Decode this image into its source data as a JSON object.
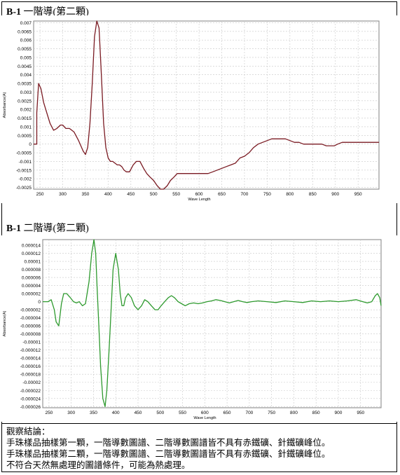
{
  "headers": [
    {
      "code": "B-1",
      "title": "一階導(第二顆)"
    },
    {
      "code": "B-1",
      "title": "二階導(第二顆)"
    }
  ],
  "conclusion": {
    "heading": "觀察結論：",
    "lines": [
      "手珠樣品抽樣第一顆，一階導數圖譜、二階導數圖譜皆不具有赤鐵礦、針鐵礦峰位。",
      "手珠樣品抽樣第二顆，一階導數圖譜、二階導數圖譜皆不具有赤鐵礦、針鐵礦峰位。",
      "不符合天然無處理的圖譜條件，可能為熱處理。"
    ]
  },
  "colors": {
    "chart1_line": "#7a1a22",
    "chart2_line": "#2e9a2e",
    "grid": "#c8c8c8"
  },
  "chart_data": [
    {
      "type": "line",
      "xlabel": "Wave Length",
      "ylabel": "Absorbance(A)",
      "xlim": [
        236,
        996
      ],
      "ylim": [
        -0.0026,
        0.0071
      ],
      "x_ticks": [
        250,
        300,
        350,
        400,
        450,
        500,
        550,
        600,
        650,
        700,
        750,
        800,
        850,
        900,
        950
      ],
      "y_ticks": [
        0.007,
        0.0065,
        0.006,
        0.0055,
        0.005,
        0.0045,
        0.004,
        0.0035,
        0.003,
        0.0025,
        0.002,
        0.0015,
        0.001,
        0.0005,
        0,
        -0.0005,
        -0.001,
        -0.0015,
        -0.002,
        -0.0025
      ],
      "y_tick_labels": [
        "0.007",
        "0.0065",
        "0.006",
        "0.0055",
        "0.005",
        "0.0045",
        "0.004",
        "0.0035",
        "0.003",
        "0.0025",
        "0.002",
        "0.0015",
        "0.001",
        "0.0005",
        "0",
        "-0.0005",
        "-0.001",
        "-0.0015",
        "-0.002",
        "-0.0025"
      ],
      "series": [
        {
          "x": [
            236,
            243,
            243,
            247,
            252,
            258,
            265,
            272,
            280,
            287,
            295,
            300,
            307,
            315,
            325,
            335,
            345,
            350,
            355,
            360,
            365,
            370,
            375,
            380,
            385,
            390,
            395,
            400,
            405,
            410,
            415,
            420,
            425,
            430,
            435,
            440,
            447,
            455,
            462,
            470,
            478,
            485,
            492,
            500,
            508,
            515,
            522,
            530,
            537,
            545,
            552,
            560,
            570,
            580,
            590,
            600,
            610,
            620,
            630,
            640,
            650,
            660,
            670,
            680,
            690,
            700,
            710,
            720,
            730,
            740,
            750,
            760,
            770,
            780,
            790,
            800,
            810,
            820,
            830,
            840,
            850,
            860,
            870,
            880,
            890,
            898,
            905,
            915,
            925,
            935,
            950,
            970,
            996
          ],
          "y": [
            0,
            0,
            0.0018,
            0.0035,
            0.0032,
            0.0024,
            0.0018,
            0.0012,
            0.0008,
            0.0009,
            0.0011,
            0.0011,
            0.0009,
            0.0009,
            0.0007,
            0.0002,
            -0.0004,
            -0.0006,
            -0.0002,
            0.0012,
            0.0035,
            0.0062,
            0.0071,
            0.0067,
            0.004,
            0.0012,
            -0.0002,
            -0.0008,
            -0.001,
            -0.001,
            -0.0011,
            -0.0012,
            -0.0012,
            -0.0013,
            -0.0015,
            -0.0016,
            -0.0016,
            -0.0012,
            -0.001,
            -0.001,
            -0.0014,
            -0.0017,
            -0.0019,
            -0.0021,
            -0.0024,
            -0.0026,
            -0.0026,
            -0.0024,
            -0.0021,
            -0.0019,
            -0.0017,
            -0.0017,
            -0.0017,
            -0.0017,
            -0.0017,
            -0.0017,
            -0.0017,
            -0.0017,
            -0.0016,
            -0.0015,
            -0.0014,
            -0.0013,
            -0.0012,
            -0.0011,
            -0.0008,
            -0.0007,
            -0.0005,
            -0.0002,
            0,
            0.0001,
            0.0002,
            0.0003,
            0.0003,
            0.0003,
            0.0003,
            0.0002,
            0.0001,
            0.0001,
            0,
            0,
            0,
            0,
            0,
            -0.0001,
            -0.0001,
            -0.0001,
            0,
            0.0001,
            0.0001,
            0.0001,
            0.0001,
            0.0001,
            0.0001
          ]
        }
      ]
    },
    {
      "type": "line",
      "xlabel": "Wave Length",
      "ylabel": "Absorbance(A)",
      "xlim": [
        236,
        996
      ],
      "ylim": [
        -2.63e-05,
        1.54e-05
      ],
      "x_ticks": [
        250,
        300,
        350,
        400,
        450,
        500,
        550,
        600,
        650,
        700,
        750,
        800,
        850,
        900,
        950
      ],
      "y_ticks": [
        1.4e-05,
        1.2e-05,
        1e-05,
        8e-06,
        6e-06,
        4e-06,
        2e-06,
        0,
        -2e-06,
        -4e-06,
        -6e-06,
        -8e-06,
        -1e-05,
        -1.2e-05,
        -1.4e-05,
        -1.6e-05,
        -1.8e-05,
        -2e-05,
        -2.2e-05,
        -2.4e-05,
        -2.6e-05
      ],
      "y_tick_labels": [
        "0.000014",
        "0.000012",
        "0.00001",
        "0.000008",
        "0.000006",
        "0.000004",
        "0.000002",
        "0",
        "-0.000002",
        "-0.000004",
        "-0.000006",
        "-0.000008",
        "-0.00001",
        "-0.000012",
        "-0.000014",
        "-0.000016",
        "-0.000018",
        "-0.00002",
        "-0.000022",
        "-0.000024",
        "-0.000026"
      ],
      "series": [
        {
          "x": [
            236,
            244,
            248,
            255,
            262,
            266,
            272,
            278,
            283,
            290,
            298,
            305,
            312,
            318,
            325,
            332,
            340,
            346,
            351,
            355,
            358,
            362,
            366,
            371,
            376,
            380,
            385,
            390,
            394,
            400,
            406,
            410,
            414,
            418,
            422,
            428,
            435,
            442,
            450,
            458,
            465,
            472,
            480,
            488,
            495,
            502,
            510,
            518,
            525,
            532,
            540,
            548,
            556,
            565,
            575,
            585,
            595,
            605,
            615,
            625,
            635,
            645,
            655,
            665,
            675,
            685,
            695,
            705,
            720,
            740,
            760,
            780,
            800,
            820,
            840,
            860,
            880,
            900,
            920,
            940,
            955,
            965,
            975,
            983,
            988,
            993,
            996
          ],
          "y": [
            0,
            0,
            0,
            5e-07,
            -2e-06,
            -5e-06,
            -6e-06,
            -5e-07,
            2e-06,
            2e-06,
            1e-06,
            0,
            -3e-07,
            0,
            -1e-06,
            -5e-07,
            5e-06,
            1.2e-05,
            1.54e-05,
            1.2e-05,
            4e-06,
            -6e-06,
            -1.6e-05,
            -2.4e-05,
            -2.6e-05,
            -2.2e-05,
            -1.2e-05,
            -1e-06,
            8e-06,
            1.2e-05,
            8e-06,
            2e-06,
            -1e-06,
            -1e-06,
            1e-06,
            2e-06,
            1e-06,
            -1e-06,
            -2e-06,
            -1e-06,
            5e-07,
            0,
            -1e-06,
            -2e-06,
            -2e-06,
            -1e-06,
            0,
            1e-06,
            1.5e-06,
            1e-06,
            0,
            -5e-07,
            -1e-06,
            -5e-07,
            -3e-07,
            -5e-07,
            -3e-07,
            0,
            2e-07,
            5e-07,
            3e-07,
            0,
            -3e-07,
            0,
            3e-07,
            0,
            -2e-07,
            0,
            2e-07,
            0,
            -2e-07,
            2e-07,
            0,
            -2e-07,
            2e-07,
            0,
            2e-07,
            0,
            2e-07,
            5e-07,
            0,
            -3e-07,
            0,
            1.5e-06,
            2e-06,
            1e-06,
            -1e-06
          ]
        }
      ]
    }
  ]
}
